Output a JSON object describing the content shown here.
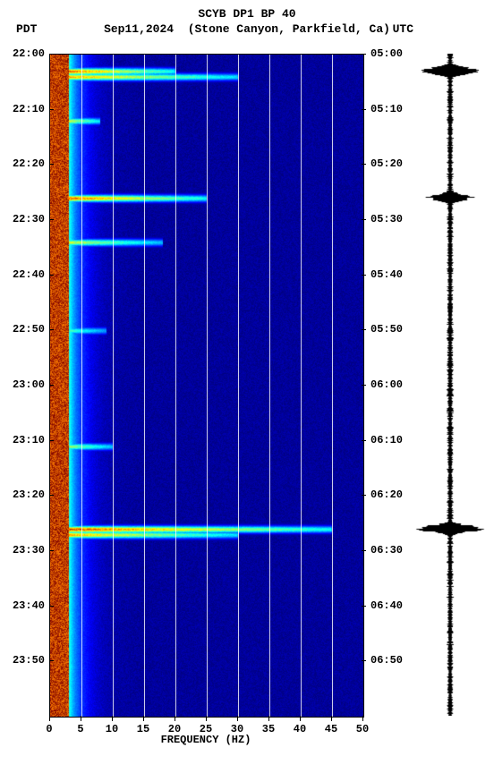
{
  "title_line1": "SCYB DP1 BP 40",
  "title_line2_date": "Sep11,2024",
  "title_line2_loc": "(Stone Canyon, Parkfield, Ca)",
  "tz_left": "PDT",
  "tz_right": "UTC",
  "xlabel": "FREQUENCY (HZ)",
  "font_family": "Courier New",
  "title_fontsize": 13,
  "label_fontsize": 12,
  "text_color": "#000000",
  "background_color": "#ffffff",
  "spectrogram": {
    "type": "spectrogram",
    "xlim": [
      0,
      50
    ],
    "xtick_step": 5,
    "xticks": [
      0,
      5,
      10,
      15,
      20,
      25,
      30,
      35,
      40,
      45,
      50
    ],
    "pdt_start": "22:00",
    "utc_start": "05:00",
    "duration_min": 120,
    "y_tick_interval_min": 10,
    "pdt_labels": [
      "22:00",
      "22:10",
      "22:20",
      "22:30",
      "22:40",
      "22:50",
      "23:00",
      "23:10",
      "23:20",
      "23:30",
      "23:40",
      "23:50"
    ],
    "utc_labels": [
      "05:00",
      "05:10",
      "05:20",
      "05:30",
      "05:40",
      "05:50",
      "06:00",
      "06:10",
      "06:20",
      "06:30",
      "06:40",
      "06:50"
    ],
    "grid_color": "#ffffff",
    "colormap_stops": [
      {
        "v": 0.0,
        "c": "#00007f"
      },
      {
        "v": 0.12,
        "c": "#0000ff"
      },
      {
        "v": 0.3,
        "c": "#007fff"
      },
      {
        "v": 0.45,
        "c": "#00ffff"
      },
      {
        "v": 0.6,
        "c": "#7fff7f"
      },
      {
        "v": 0.72,
        "c": "#ffff00"
      },
      {
        "v": 0.85,
        "c": "#ff7f00"
      },
      {
        "v": 1.0,
        "c": "#7f0000"
      }
    ],
    "low_freq_cutoff_hz": 3,
    "events": [
      {
        "t_min": 3,
        "freq_extent": 20,
        "intensity": 1.0
      },
      {
        "t_min": 4,
        "freq_extent": 30,
        "intensity": 0.9
      },
      {
        "t_min": 12,
        "freq_extent": 8,
        "intensity": 0.9
      },
      {
        "t_min": 26,
        "freq_extent": 25,
        "intensity": 1.0
      },
      {
        "t_min": 34,
        "freq_extent": 18,
        "intensity": 0.8
      },
      {
        "t_min": 50,
        "freq_extent": 9,
        "intensity": 0.7
      },
      {
        "t_min": 71,
        "freq_extent": 10,
        "intensity": 0.8
      },
      {
        "t_min": 86,
        "freq_extent": 45,
        "intensity": 1.0
      },
      {
        "t_min": 87,
        "freq_extent": 30,
        "intensity": 0.9
      }
    ]
  },
  "seismogram": {
    "type": "wiggle-trace",
    "trace_color": "#000000",
    "baseline_width": 4,
    "noise_width": 7,
    "bursts": [
      {
        "t_min": 3,
        "amp": 1.0
      },
      {
        "t_min": 26,
        "amp": 0.7
      },
      {
        "t_min": 86,
        "amp": 1.0
      }
    ]
  }
}
